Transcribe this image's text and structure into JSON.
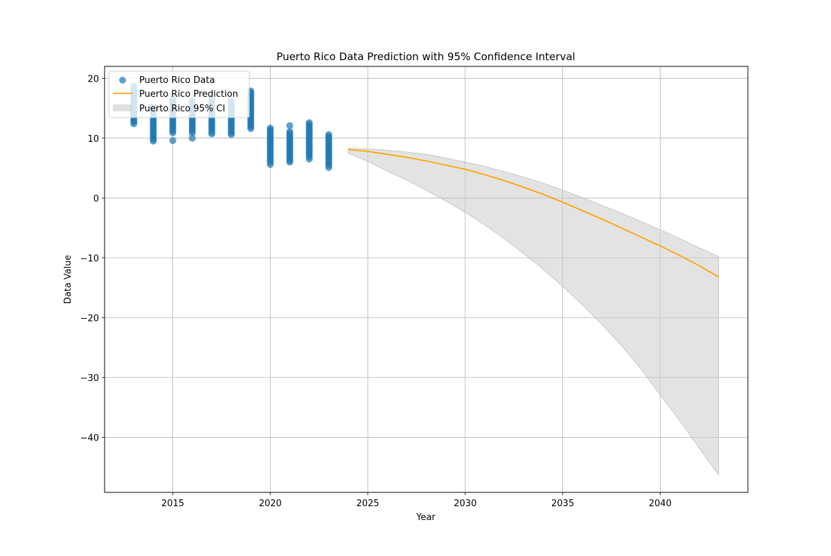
{
  "chart_data": {
    "type": "scatter",
    "title": "Puerto Rico Data Prediction with 95% Confidence Interval",
    "xlabel": "Year",
    "ylabel": "Data Value",
    "xlim": [
      2011.5,
      2044.5
    ],
    "ylim": [
      -49.2,
      22
    ],
    "xticks": [
      2015,
      2020,
      2025,
      2030,
      2035,
      2040
    ],
    "yticks": [
      20,
      10,
      0,
      -10,
      -20,
      -30,
      -40
    ],
    "grid": true,
    "legend_position": "top-left",
    "legend": [
      "Puerto Rico Data",
      "Puerto Rico Prediction",
      "Puerto Rico 95% CI"
    ],
    "series": [
      {
        "name": "Puerto Rico Data",
        "kind": "scatter",
        "color": "#1f77b4",
        "points": [
          {
            "year": 2013,
            "values": [
              18.7,
              18.3,
              17.9,
              17.6,
              17.3,
              17.0,
              16.6,
              16.3,
              16.0,
              15.7,
              15.4,
              15.1,
              14.8,
              14.5,
              14.2,
              13.9,
              13.6,
              13.3,
              13.0,
              12.7,
              12.4
            ]
          },
          {
            "year": 2014,
            "values": [
              15.2,
              14.9,
              14.6,
              14.3,
              14.0,
              13.7,
              13.4,
              13.1,
              12.8,
              12.5,
              12.2,
              11.9,
              11.6,
              11.3,
              11.0,
              10.7,
              10.4,
              10.1,
              9.8,
              9.5
            ]
          },
          {
            "year": 2015,
            "values": [
              16.6,
              16.3,
              16.0,
              15.7,
              15.4,
              15.1,
              14.8,
              14.5,
              14.2,
              13.9,
              13.6,
              13.3,
              13.0,
              12.7,
              12.4,
              12.1,
              11.8,
              11.5,
              11.2,
              10.9,
              9.6
            ]
          },
          {
            "year": 2016,
            "values": [
              16.3,
              16.0,
              15.7,
              15.4,
              15.1,
              14.8,
              14.5,
              14.2,
              13.9,
              13.6,
              13.3,
              13.0,
              12.7,
              12.4,
              12.1,
              11.8,
              11.5,
              11.2,
              10.9,
              10.0
            ]
          },
          {
            "year": 2017,
            "values": [
              16.4,
              16.1,
              15.8,
              15.5,
              15.2,
              14.9,
              14.6,
              14.3,
              14.0,
              13.7,
              13.4,
              13.1,
              12.8,
              12.5,
              12.2,
              11.9,
              11.6,
              11.3,
              11.0,
              10.7
            ]
          },
          {
            "year": 2018,
            "values": [
              16.3,
              16.0,
              15.7,
              15.4,
              15.1,
              14.8,
              14.5,
              14.2,
              13.9,
              13.6,
              13.3,
              13.0,
              12.7,
              12.4,
              12.1,
              11.8,
              11.5,
              11.2,
              10.9,
              10.6
            ]
          },
          {
            "year": 2019,
            "values": [
              17.9,
              17.6,
              17.3,
              17.0,
              16.7,
              16.4,
              16.1,
              15.8,
              15.5,
              15.2,
              14.9,
              14.6,
              14.3,
              14.0,
              13.7,
              13.4,
              13.1,
              12.8,
              12.5,
              12.2,
              11.9,
              11.6
            ]
          },
          {
            "year": 2020,
            "values": [
              11.7,
              11.4,
              11.1,
              10.8,
              10.5,
              10.2,
              9.9,
              9.6,
              9.3,
              9.0,
              8.7,
              8.4,
              8.1,
              7.8,
              7.5,
              7.2,
              6.9,
              6.6,
              6.3,
              6.0,
              5.6
            ]
          },
          {
            "year": 2021,
            "values": [
              12.1,
              11.1,
              10.8,
              10.5,
              10.2,
              9.9,
              9.6,
              9.3,
              9.0,
              8.7,
              8.4,
              8.1,
              7.8,
              7.5,
              7.2,
              6.9,
              6.6,
              6.3,
              6.0
            ]
          },
          {
            "year": 2022,
            "values": [
              12.6,
              12.3,
              12.0,
              11.7,
              11.4,
              11.1,
              10.8,
              10.5,
              10.2,
              9.9,
              9.6,
              9.3,
              9.0,
              8.7,
              8.4,
              8.1,
              7.8,
              7.5,
              7.2,
              6.9,
              6.5
            ]
          },
          {
            "year": 2023,
            "values": [
              10.6,
              10.3,
              10.0,
              9.7,
              9.4,
              9.1,
              8.8,
              8.5,
              8.2,
              7.9,
              7.6,
              7.3,
              7.0,
              6.7,
              6.4,
              6.1,
              5.8,
              5.5,
              5.1
            ]
          }
        ]
      },
      {
        "name": "Puerto Rico Prediction",
        "kind": "line",
        "color": "#ffa500",
        "x": [
          2024,
          2025,
          2026,
          2027,
          2028,
          2029,
          2030,
          2031,
          2032,
          2033,
          2034,
          2035,
          2036,
          2037,
          2038,
          2039,
          2040,
          2041,
          2042,
          2043
        ],
        "y": [
          8.1,
          7.8,
          7.3,
          6.8,
          6.2,
          5.5,
          4.8,
          3.9,
          2.9,
          1.8,
          0.6,
          -0.7,
          -2.1,
          -3.5,
          -5.0,
          -6.5,
          -8.0,
          -9.6,
          -11.3,
          -13.2
        ]
      },
      {
        "name": "Puerto Rico 95% CI",
        "kind": "band",
        "color": "#cccccc",
        "x": [
          2024,
          2025,
          2026,
          2027,
          2028,
          2029,
          2030,
          2031,
          2032,
          2033,
          2034,
          2035,
          2036,
          2037,
          2038,
          2039,
          2040,
          2041,
          2042,
          2043
        ],
        "lower": [
          7.5,
          6.1,
          4.5,
          3.0,
          1.3,
          -0.5,
          -2.4,
          -4.5,
          -6.8,
          -9.3,
          -11.9,
          -14.8,
          -17.8,
          -21.1,
          -24.6,
          -28.5,
          -32.9,
          -37.2,
          -41.8,
          -46.3
        ],
        "upper": [
          8.3,
          8.2,
          8.0,
          7.7,
          7.3,
          6.7,
          6.0,
          5.3,
          4.4,
          3.5,
          2.5,
          1.3,
          0.1,
          -1.2,
          -2.5,
          -3.9,
          -5.3,
          -6.8,
          -8.3,
          -9.8
        ]
      }
    ]
  }
}
